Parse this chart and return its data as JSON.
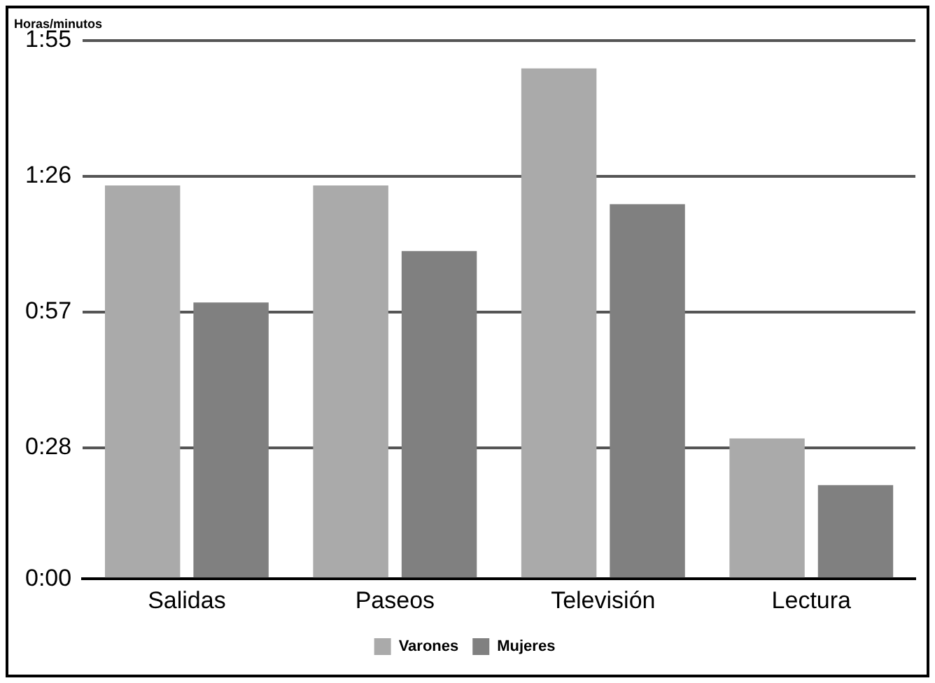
{
  "chart_data": {
    "type": "bar",
    "ylabel": "Horas/minutos",
    "categories": [
      "Salidas",
      "Paseos",
      "Televisión",
      "Lectura"
    ],
    "series": [
      {
        "name": "Varones",
        "color": "#aaaaaa",
        "values": [
          84,
          84,
          109,
          30
        ]
      },
      {
        "name": "Mujeres",
        "color": "#808080",
        "values": [
          59,
          70,
          80,
          20
        ]
      }
    ],
    "ylim": [
      0,
      115
    ],
    "yticks": [
      {
        "value": 0,
        "label": "0:00"
      },
      {
        "value": 28,
        "label": "0:28"
      },
      {
        "value": 57,
        "label": "0:57"
      },
      {
        "value": 86,
        "label": "1:26"
      },
      {
        "value": 115,
        "label": "1:55"
      }
    ],
    "grid": "y",
    "legend": "bottom"
  }
}
